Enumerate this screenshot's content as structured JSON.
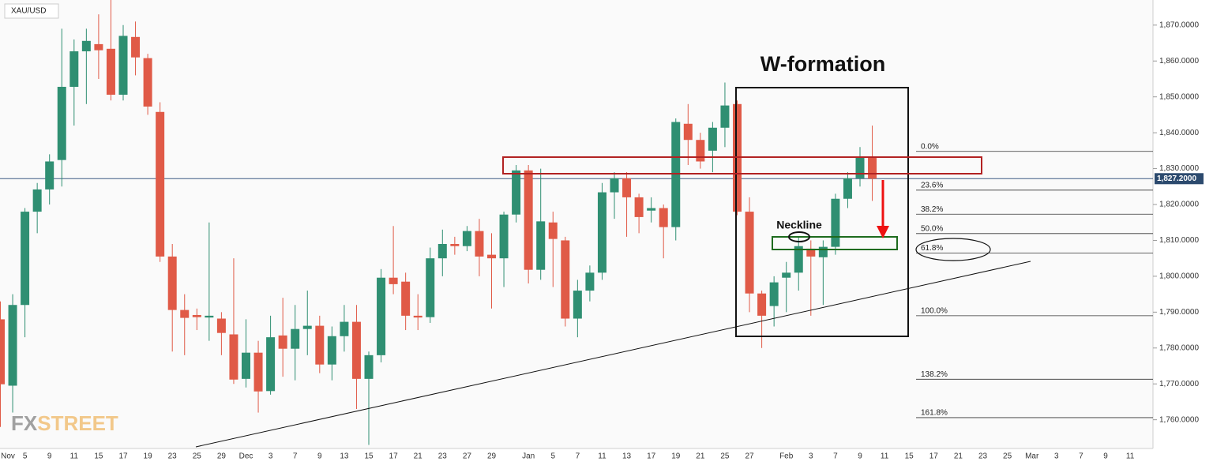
{
  "chart_data": {
    "type": "candlestick",
    "symbol": "XAU/USD",
    "logo": [
      "FX",
      "STREET"
    ],
    "annotations": {
      "pattern": "W-formation",
      "neckline": "Neckline"
    },
    "up_color": "#2f8f72",
    "down_color": "#e05a47",
    "categories": [
      "Nov",
      null,
      "5",
      null,
      "9",
      null,
      "11",
      null,
      "15",
      null,
      "17",
      null,
      "19",
      null,
      "23",
      null,
      "25",
      null,
      "29",
      null,
      "Dec",
      null,
      "3",
      null,
      "7",
      null,
      "9",
      null,
      "13",
      null,
      "15",
      null,
      "17",
      null,
      "21",
      null,
      "23",
      null,
      "27",
      null,
      "29",
      null,
      null,
      "Jan",
      null,
      "5",
      null,
      "7",
      null,
      "11",
      null,
      "13",
      null,
      "17",
      null,
      "19",
      null,
      "21",
      null,
      "25",
      null,
      "27",
      null,
      null,
      "Feb",
      null,
      "3",
      null,
      "7",
      null,
      "9",
      null,
      "11",
      null,
      "15",
      null,
      "17",
      null,
      "21",
      null,
      "23",
      null,
      "25",
      null,
      "Mar",
      null,
      "3",
      null,
      "7",
      null,
      "9",
      null,
      "11"
    ],
    "open": [
      1788,
      1769.5,
      1792,
      1818,
      1824.2,
      1832.4,
      1852.8,
      1862.7,
      1864.7,
      1863.4,
      1850.6,
      1866.7,
      1860.8,
      1845.8,
      1805.5,
      1790.6,
      1789.2,
      1788.5,
      1788.2,
      1783.8,
      1771.4,
      1778.7,
      1768,
      1783.5,
      1779.8,
      1785.3,
      1786.2,
      1775.4,
      1783.3,
      1787.3,
      1771.4,
      1778,
      1799.6,
      1798.5,
      1789,
      1788.6,
      1805,
      1809,
      1808.4,
      1812.6,
      1806,
      1805,
      1817.2,
      1829.5,
      1801.8,
      1815,
      1810,
      1788.2,
      1796,
      1801,
      1823.4,
      1827.3,
      1822,
      1818.3,
      1819,
      1813.7,
      1842.5,
      1838,
      1835,
      1841.4,
      1848,
      1818,
      1795.2,
      1791.7,
      1799.6,
      1801,
      1807.7,
      1805.3,
      1808.2,
      1821.6,
      1827.3,
      1833,
      null,
      null,
      null,
      null,
      null,
      null,
      null,
      null,
      null,
      null,
      null,
      null,
      null,
      null,
      null,
      null,
      null,
      null,
      null,
      null,
      null
    ],
    "high": [
      1793,
      1795,
      1819,
      1826,
      1834,
      1869,
      1866,
      1869,
      1873,
      1877,
      1870,
      1871,
      1862,
      1848.5,
      1809,
      1795,
      1791,
      1815,
      1790,
      1805,
      1788,
      1782,
      1789,
      1794,
      1792,
      1796,
      1789,
      1786,
      1792,
      1792,
      1779,
      1802,
      1814,
      1801,
      1795,
      1808,
      1813,
      1811,
      1814,
      1816,
      1812,
      1818,
      1831,
      1831,
      1830,
      1818,
      1811,
      1799,
      1803,
      1826,
      1829,
      1829,
      1823,
      1822,
      1820,
      1844,
      1848,
      1840,
      1843,
      1854,
      1849,
      1822,
      1796,
      1800,
      1804,
      1811,
      1810,
      1810,
      1823,
      1829,
      1836,
      1842,
      null,
      null,
      null,
      null,
      null,
      null,
      null,
      null,
      null,
      null,
      null,
      null,
      null,
      null,
      null,
      null,
      null,
      null,
      null,
      null,
      null
    ],
    "low": [
      1758,
      1762,
      1783,
      1812,
      1820,
      1825,
      1842,
      1848,
      1855,
      1849,
      1849,
      1856,
      1845,
      1804,
      1779,
      1778,
      1785,
      1782,
      1778,
      1770,
      1769,
      1762,
      1767,
      1772,
      1771,
      1778,
      1773,
      1771,
      1779,
      1763,
      1753,
      1776,
      1795,
      1785,
      1785,
      1787,
      1800,
      1806,
      1807,
      1800,
      1791,
      1797,
      1815,
      1798,
      1799,
      1797,
      1786,
      1783,
      1793,
      1799,
      1816,
      1811,
      1812,
      1815,
      1805,
      1810,
      1831,
      1830,
      1829,
      1836,
      1817,
      1790,
      1780,
      1786,
      1790,
      1796,
      1789,
      1792,
      1806,
      1819,
      1825,
      1821,
      null,
      null,
      null,
      null,
      null,
      null,
      null,
      null,
      null,
      null,
      null,
      null,
      null,
      null,
      null,
      null,
      null,
      null,
      null,
      null,
      null
    ],
    "close": [
      1769.9,
      1792,
      1818,
      1824.2,
      1832,
      1852.8,
      1862.7,
      1865.6,
      1863,
      1850.6,
      1867,
      1861,
      1847.3,
      1805.5,
      1790.6,
      1788.4,
      1788.6,
      1789,
      1784.2,
      1771.2,
      1778.7,
      1767.9,
      1783,
      1779.8,
      1785.3,
      1786.2,
      1775.4,
      1783.3,
      1787.3,
      1771.4,
      1778,
      1799.6,
      1797.8,
      1789,
      1788.5,
      1805,
      1809,
      1808.4,
      1812.6,
      1805.5,
      1805,
      1817.2,
      1829.5,
      1801.8,
      1815.3,
      1810.4,
      1788.2,
      1796,
      1801,
      1823.4,
      1827.3,
      1822,
      1816.5,
      1819,
      1813.7,
      1843,
      1838,
      1832,
      1841.4,
      1847.6,
      1818,
      1795.2,
      1789,
      1798.3,
      1801,
      1808.4,
      1805.5,
      1808.2,
      1821.6,
      1827.3,
      1833,
      1827.2,
      null,
      null,
      null,
      null,
      null,
      null,
      null,
      null,
      null,
      null,
      null,
      null,
      null,
      null,
      null,
      null,
      null,
      null,
      null,
      null,
      null
    ],
    "ylim": [
      1752,
      1877
    ],
    "yticks": [
      {
        "value": 1760,
        "label": "1,760.0000"
      },
      {
        "value": 1770,
        "label": "1,770.0000"
      },
      {
        "value": 1780,
        "label": "1,780.0000"
      },
      {
        "value": 1790,
        "label": "1,790.0000"
      },
      {
        "value": 1800,
        "label": "1,800.0000"
      },
      {
        "value": 1810,
        "label": "1,810.0000"
      },
      {
        "value": 1820,
        "label": "1,820.0000"
      },
      {
        "value": 1830,
        "label": "1,830.0000"
      },
      {
        "value": 1840,
        "label": "1,840.0000"
      },
      {
        "value": 1850,
        "label": "1,850.0000"
      },
      {
        "value": 1860,
        "label": "1,860.0000"
      },
      {
        "value": 1870,
        "label": "1,870.0000"
      }
    ],
    "last_price": {
      "value": 1827.2,
      "label": "1,827.2000"
    },
    "fib_levels": [
      {
        "label": "0.0%",
        "value": 1834.8
      },
      {
        "label": "23.6%",
        "value": 1824.0
      },
      {
        "label": "38.2%",
        "value": 1817.3
      },
      {
        "label": "50.0%",
        "value": 1811.9
      },
      {
        "label": "61.8%",
        "value": 1806.5
      },
      {
        "label": "100.0%",
        "value": 1789.0
      },
      {
        "label": "138.2%",
        "value": 1771.3
      },
      {
        "label": "161.8%",
        "value": 1760.6
      }
    ]
  }
}
